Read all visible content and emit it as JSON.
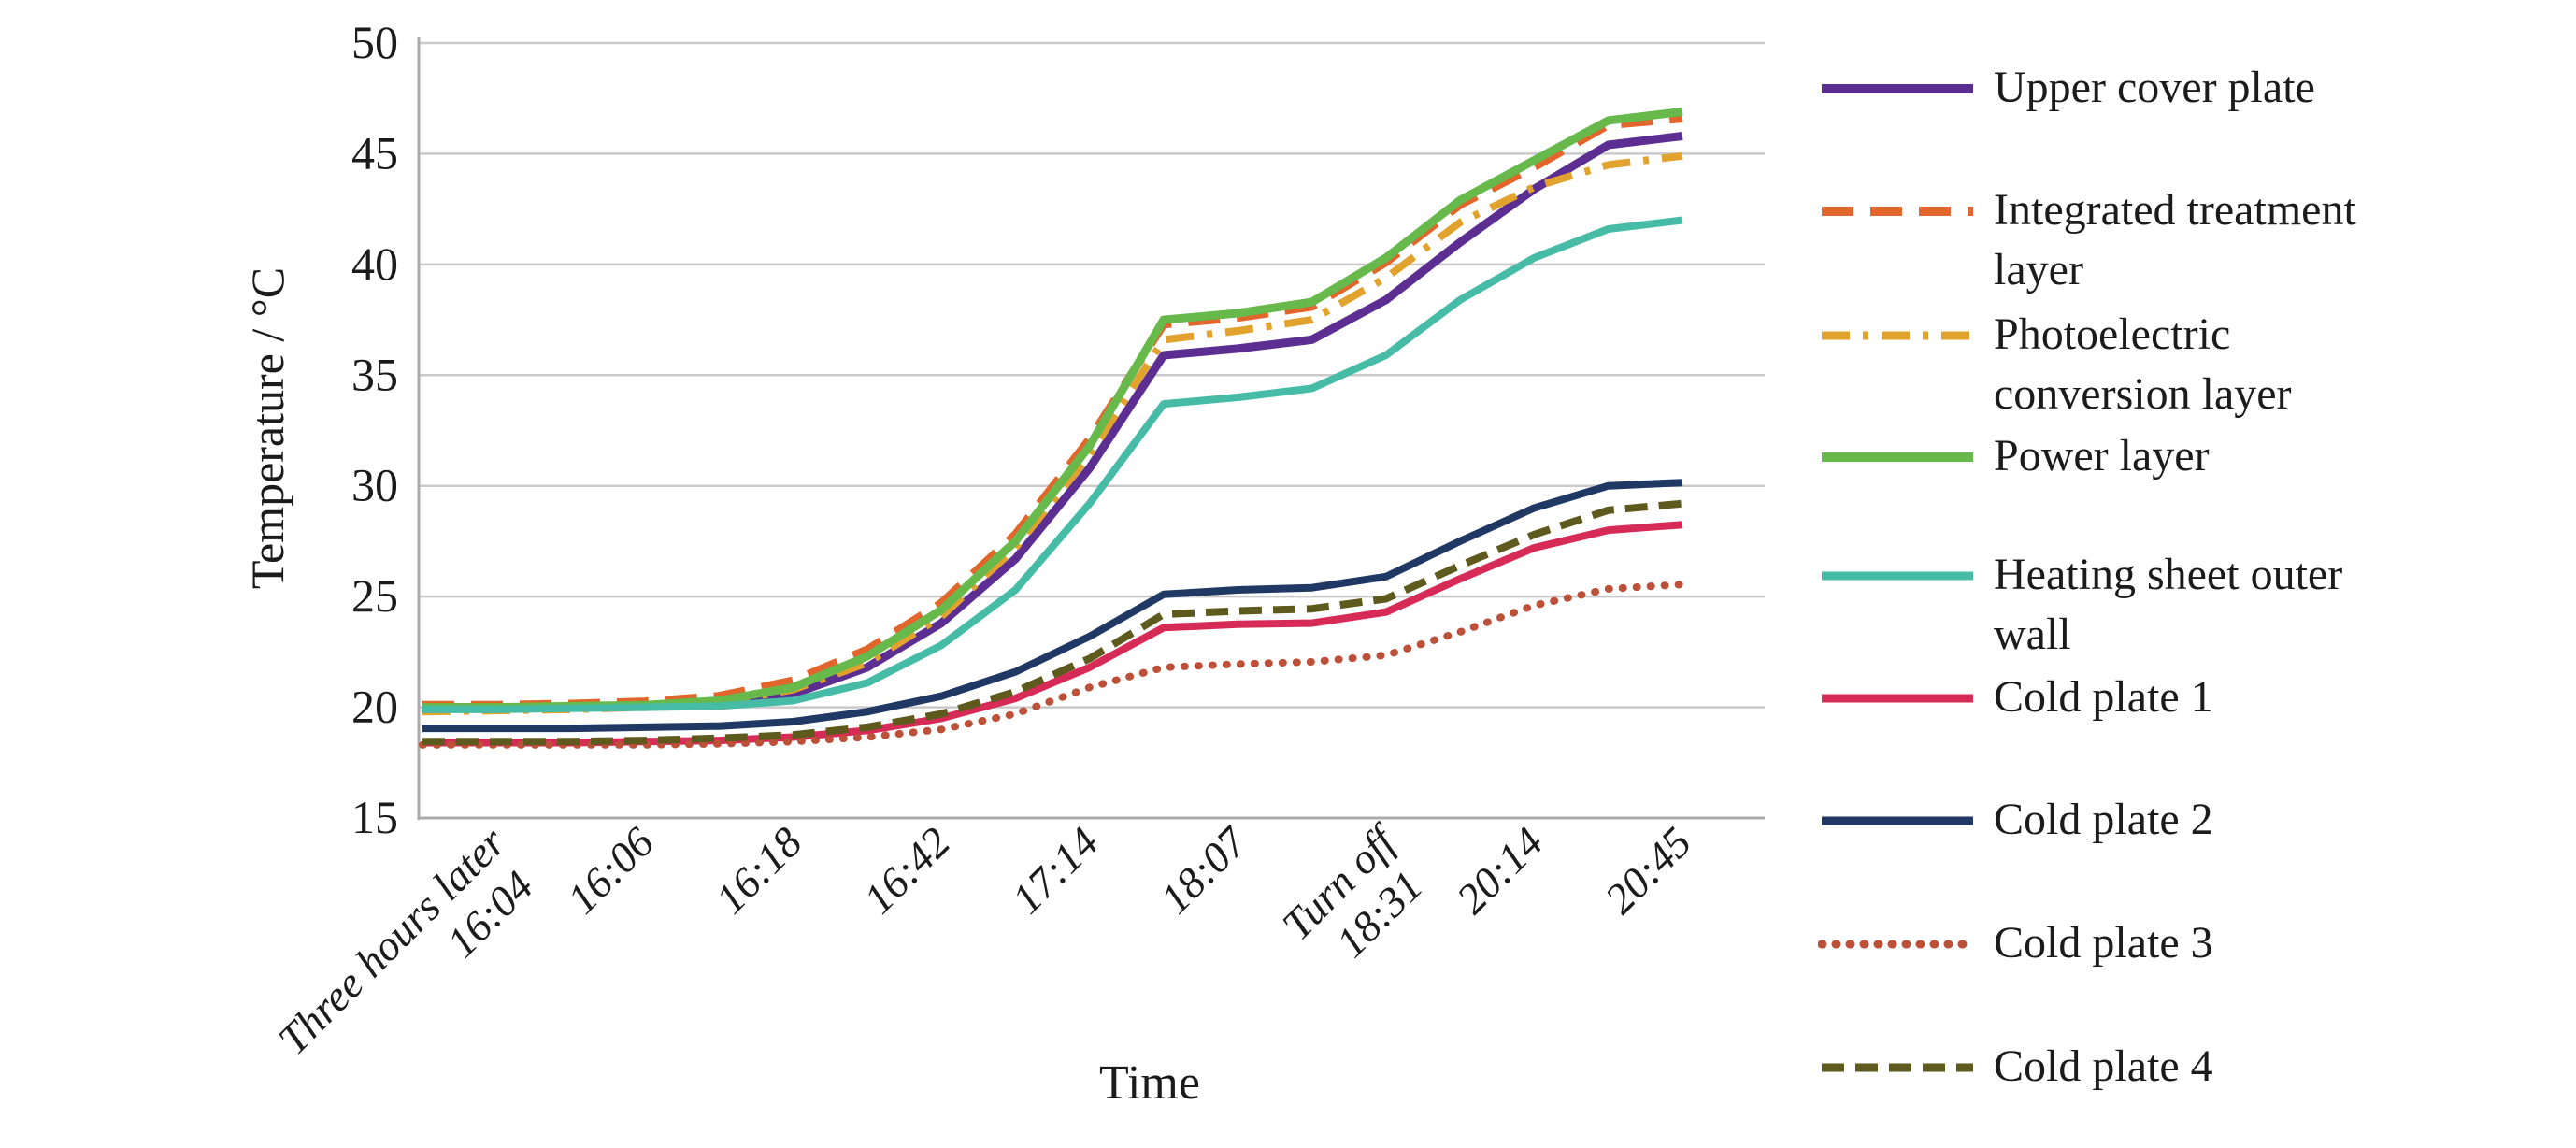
{
  "figure": {
    "y_axis_title": "Temperature / °C",
    "x_axis_title": "Time"
  },
  "chart_data": {
    "type": "line",
    "title": "",
    "xlabel": "Time",
    "ylabel": "Temperature / °C",
    "ylim": [
      15,
      50
    ],
    "yticks": [
      50,
      45,
      40,
      35,
      30,
      25,
      20,
      15
    ],
    "grid": "horizontal-only",
    "legend_position": "right-outside",
    "x_tick_labels": [
      {
        "lines": [
          "Three hours later",
          "16:04"
        ]
      },
      {
        "lines": [
          "16:06"
        ]
      },
      {
        "lines": [
          "16:18"
        ]
      },
      {
        "lines": [
          "16:42"
        ]
      },
      {
        "lines": [
          "17:14"
        ]
      },
      {
        "lines": [
          "18:07"
        ]
      },
      {
        "lines": [
          "Turn off",
          "18:31"
        ]
      },
      {
        "lines": [
          "20:14"
        ]
      },
      {
        "lines": [
          "20:45"
        ]
      }
    ],
    "n_points": 18,
    "tick_point_indices": [
      1,
      3,
      5,
      7,
      9,
      11,
      13,
      15,
      17
    ],
    "axis_colors": {
      "gridline": "#cacaca",
      "axis_line": "#ababab",
      "text": "#1b1b1b"
    },
    "series": [
      {
        "name": "Upper cover plate",
        "label_lines": [
          "Upper cover plate"
        ],
        "color": "#5C2E91",
        "style": "solid",
        "stroke_width": 9,
        "values": [
          20.0,
          20.0,
          20.0,
          20.05,
          20.15,
          20.6,
          21.8,
          23.8,
          26.7,
          30.8,
          35.9,
          36.2,
          36.6,
          38.4,
          41.0,
          43.4,
          45.4,
          45.8
        ]
      },
      {
        "name": "Integrated treatment layer",
        "label_lines": [
          "Integrated treatment",
          "layer"
        ],
        "color": "#E2662C",
        "style": "dashed",
        "stroke_width": 9,
        "values": [
          20.1,
          20.1,
          20.15,
          20.25,
          20.5,
          21.2,
          22.6,
          24.7,
          27.8,
          32.1,
          37.3,
          37.6,
          38.1,
          40.1,
          42.7,
          44.4,
          46.3,
          46.6
        ]
      },
      {
        "name": "Photoelectric conversion layer",
        "label_lines": [
          "Photoelectric",
          "conversion layer"
        ],
        "color": "#E2A32E",
        "style": "dashdot",
        "stroke_width": 8,
        "values": [
          19.8,
          19.85,
          19.9,
          20.0,
          20.2,
          20.8,
          22.0,
          24.1,
          27.2,
          31.4,
          36.6,
          37.0,
          37.5,
          39.4,
          41.9,
          43.5,
          44.5,
          44.9
        ]
      },
      {
        "name": "Power layer",
        "label_lines": [
          "Power layer"
        ],
        "color": "#66B94A",
        "style": "solid",
        "stroke_width": 9,
        "values": [
          20.0,
          20.0,
          20.05,
          20.1,
          20.3,
          20.9,
          22.3,
          24.4,
          27.5,
          31.8,
          37.5,
          37.8,
          38.3,
          40.3,
          42.9,
          44.7,
          46.5,
          46.9
        ]
      },
      {
        "name": "Heating sheet outer wall",
        "label_lines": [
          "Heating sheet outer",
          "wall"
        ],
        "color": "#46BCA7",
        "style": "solid",
        "stroke_width": 8,
        "values": [
          19.9,
          19.9,
          19.95,
          20.0,
          20.05,
          20.3,
          21.1,
          22.8,
          25.3,
          29.2,
          33.7,
          34.0,
          34.4,
          35.9,
          38.4,
          40.3,
          41.6,
          42.0
        ]
      },
      {
        "name": "Cold plate 1",
        "label_lines": [
          "Cold plate 1"
        ],
        "color": "#D72B57",
        "style": "solid",
        "stroke_width": 8,
        "values": [
          18.4,
          18.4,
          18.4,
          18.45,
          18.5,
          18.65,
          18.95,
          19.5,
          20.4,
          21.8,
          23.6,
          23.75,
          23.8,
          24.3,
          25.8,
          27.2,
          28.0,
          28.25
        ]
      },
      {
        "name": "Cold plate 2",
        "label_lines": [
          "Cold plate 2"
        ],
        "color": "#203864",
        "style": "solid",
        "stroke_width": 8,
        "values": [
          19.05,
          19.05,
          19.05,
          19.1,
          19.15,
          19.35,
          19.8,
          20.5,
          21.6,
          23.2,
          25.1,
          25.3,
          25.4,
          25.9,
          27.5,
          29.0,
          30.0,
          30.15
        ]
      },
      {
        "name": "Cold plate 3",
        "label_lines": [
          "Cold plate 3"
        ],
        "color": "#BC5038",
        "style": "dotted",
        "stroke_width": 8,
        "values": [
          18.3,
          18.3,
          18.3,
          18.3,
          18.35,
          18.45,
          18.65,
          19.0,
          19.7,
          20.9,
          21.8,
          21.95,
          22.05,
          22.35,
          23.4,
          24.6,
          25.35,
          25.55
        ]
      },
      {
        "name": "Cold plate 4",
        "label_lines": [
          "Cold plate 4"
        ],
        "color": "#5E5A1E",
        "style": "dashed-small",
        "stroke_width": 8,
        "values": [
          18.45,
          18.45,
          18.45,
          18.5,
          18.6,
          18.75,
          19.1,
          19.7,
          20.7,
          22.2,
          24.2,
          24.35,
          24.45,
          24.9,
          26.4,
          27.8,
          28.9,
          29.2
        ]
      }
    ]
  }
}
